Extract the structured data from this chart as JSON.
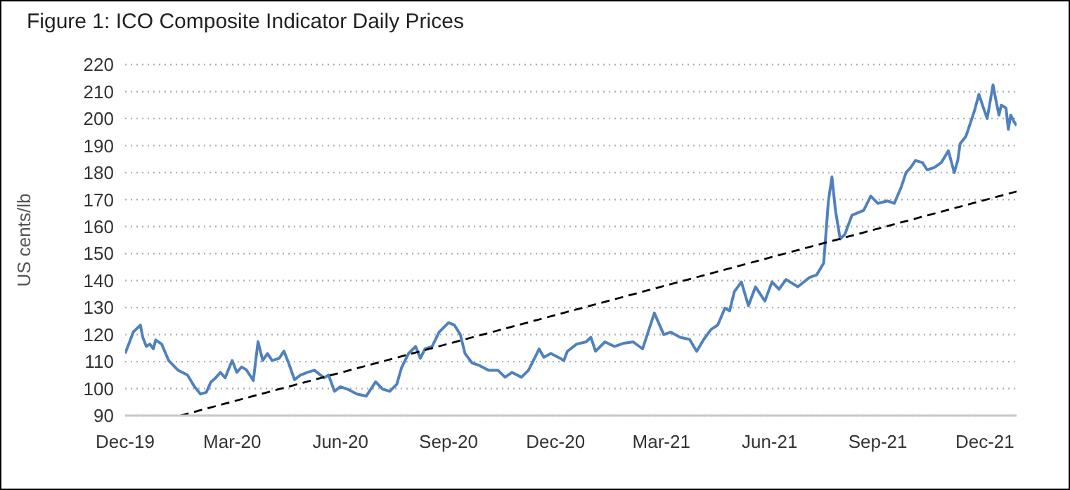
{
  "chart_data": {
    "type": "line",
    "title": "Figure 1: ICO Composite Indicator Daily Prices",
    "ylabel": "US cents/lb",
    "xlim": [
      "2019-12-01",
      "2021-12-28"
    ],
    "xticks": [
      {
        "value": "2019-12-01",
        "label": "Dec-19"
      },
      {
        "value": "2020-03-01",
        "label": "Mar-20"
      },
      {
        "value": "2020-06-01",
        "label": "Jun-20"
      },
      {
        "value": "2020-09-01",
        "label": "Sep-20"
      },
      {
        "value": "2020-12-01",
        "label": "Dec-20"
      },
      {
        "value": "2021-03-01",
        "label": "Mar-21"
      },
      {
        "value": "2021-06-01",
        "label": "Jun-21"
      },
      {
        "value": "2021-09-01",
        "label": "Sep-21"
      },
      {
        "value": "2021-12-01",
        "label": "Dec-21"
      }
    ],
    "ylim": [
      90,
      220
    ],
    "yticks": [
      90,
      100,
      110,
      120,
      130,
      140,
      150,
      160,
      170,
      180,
      190,
      200,
      210,
      220
    ],
    "grid": "y",
    "marker": "none",
    "series": [
      {
        "color": "#4f81bd",
        "line_style": "solid",
        "x": [
          "2019-12-01",
          "2019-12-08",
          "2019-12-14",
          "2019-12-16",
          "2019-12-19",
          "2019-12-22",
          "2019-12-25",
          "2019-12-27",
          "2020-01-01",
          "2020-01-07",
          "2020-01-15",
          "2020-01-23",
          "2020-01-29",
          "2020-02-03",
          "2020-02-08",
          "2020-02-12",
          "2020-02-16",
          "2020-02-20",
          "2020-02-24",
          "2020-03-01",
          "2020-03-05",
          "2020-03-09",
          "2020-03-13",
          "2020-03-19",
          "2020-03-23",
          "2020-03-27",
          "2020-03-31",
          "2020-04-04",
          "2020-04-10",
          "2020-04-14",
          "2020-04-18",
          "2020-04-23",
          "2020-04-28",
          "2020-05-04",
          "2020-05-10",
          "2020-05-18",
          "2020-05-22",
          "2020-05-27",
          "2020-06-01",
          "2020-06-07",
          "2020-06-15",
          "2020-06-23",
          "2020-07-01",
          "2020-07-07",
          "2020-07-13",
          "2020-07-19",
          "2020-07-23",
          "2020-07-29",
          "2020-08-04",
          "2020-08-08",
          "2020-08-12",
          "2020-08-18",
          "2020-08-24",
          "2020-09-01",
          "2020-09-06",
          "2020-09-11",
          "2020-09-15",
          "2020-09-21",
          "2020-09-27",
          "2020-10-05",
          "2020-10-13",
          "2020-10-19",
          "2020-10-25",
          "2020-11-02",
          "2020-11-08",
          "2020-11-14",
          "2020-11-17",
          "2020-11-21",
          "2020-11-27",
          "2020-12-05",
          "2020-12-08",
          "2020-12-11",
          "2020-12-19",
          "2020-12-27",
          "2020-12-31",
          "2021-01-04",
          "2021-01-12",
          "2021-01-20",
          "2021-01-28",
          "2021-02-05",
          "2021-02-13",
          "2021-02-23",
          "2021-03-03",
          "2021-03-09",
          "2021-03-17",
          "2021-03-25",
          "2021-03-31",
          "2021-04-06",
          "2021-04-12",
          "2021-04-18",
          "2021-04-24",
          "2021-04-28",
          "2021-05-02",
          "2021-05-08",
          "2021-05-14",
          "2021-05-20",
          "2021-05-28",
          "2021-06-03",
          "2021-06-09",
          "2021-06-15",
          "2021-06-25",
          "2021-07-05",
          "2021-07-11",
          "2021-07-17",
          "2021-07-21",
          "2021-07-24",
          "2021-07-27",
          "2021-07-31",
          "2021-08-04",
          "2021-08-10",
          "2021-08-20",
          "2021-08-26",
          "2021-09-01",
          "2021-09-09",
          "2021-09-15",
          "2021-09-21",
          "2021-09-25",
          "2021-09-29",
          "2021-10-03",
          "2021-10-09",
          "2021-10-13",
          "2021-10-19",
          "2021-10-25",
          "2021-10-31",
          "2021-11-05",
          "2021-11-08",
          "2021-11-10",
          "2021-11-15",
          "2021-11-19",
          "2021-11-22",
          "2021-11-26",
          "2021-11-29",
          "2021-12-03",
          "2021-12-08",
          "2021-12-10",
          "2021-12-13",
          "2021-12-15",
          "2021-12-19",
          "2021-12-21",
          "2021-12-23",
          "2021-12-26",
          "2021-12-28"
        ],
        "values": [
          113,
          121,
          123.5,
          119,
          115.6,
          116.5,
          114.7,
          118,
          116.5,
          110.4,
          106.8,
          105,
          100.7,
          98,
          98.6,
          102.5,
          104,
          106,
          104,
          110.4,
          106,
          108,
          107,
          103,
          117.4,
          110.4,
          113,
          110.4,
          111.2,
          113.9,
          109.5,
          103.3,
          105,
          106,
          106.8,
          104,
          105,
          99,
          100.7,
          99.8,
          98,
          97.2,
          102.5,
          99.8,
          99,
          101.6,
          107.7,
          113,
          115.6,
          111.2,
          114.7,
          115.6,
          120.9,
          124.4,
          123.5,
          120,
          113,
          109.5,
          108.6,
          106.8,
          106.8,
          104.2,
          106,
          104.2,
          106.8,
          112,
          114.7,
          111.6,
          113,
          111.2,
          110.3,
          113.8,
          116.5,
          117.3,
          119,
          113.8,
          117.3,
          115.6,
          116.8,
          117.3,
          114.7,
          128,
          120,
          120.9,
          119,
          118.2,
          113.8,
          118.2,
          121.8,
          123.6,
          129.8,
          128.8,
          135.9,
          139.5,
          130.7,
          137.7,
          132.4,
          139.5,
          136.8,
          140.4,
          137.7,
          141.2,
          142.1,
          146.5,
          169.5,
          178.4,
          166,
          155.4,
          157.1,
          164.2,
          166,
          171.3,
          168.6,
          169.5,
          168.6,
          174.7,
          180,
          181.9,
          184.5,
          183.7,
          181,
          181.9,
          183.7,
          188.1,
          180,
          184.5,
          190.7,
          193.5,
          198.7,
          202.6,
          209,
          205,
          200,
          212.5,
          207.8,
          201.3,
          205,
          203.9,
          196,
          201.3,
          198.7,
          197.4
        ]
      },
      {
        "color": "#000000",
        "line_style": "dashed",
        "x": [
          "2020-01-17",
          "2021-12-28"
        ],
        "values": [
          90,
          173
        ]
      }
    ]
  }
}
